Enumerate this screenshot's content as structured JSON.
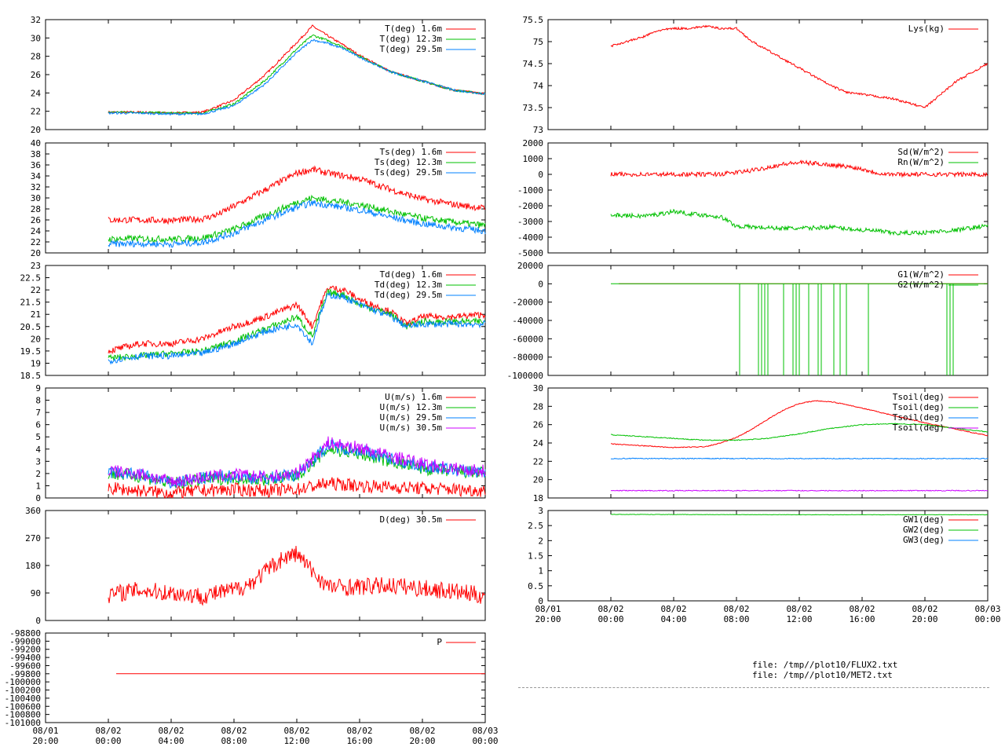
{
  "chart_data": [
    {
      "type": "line",
      "ylim": [
        20,
        32
      ],
      "yticks": [
        "20",
        "22",
        "24",
        "26",
        "28",
        "30",
        "32"
      ],
      "series": [
        {
          "name": "T(deg)  1.6m",
          "color": "#ff0000",
          "x": [
            0,
            2,
            4,
            6,
            8,
            10,
            12,
            13,
            14,
            15,
            16,
            18,
            20,
            22,
            24
          ],
          "values": [
            21.9,
            21.9,
            21.8,
            21.9,
            23.2,
            26.0,
            29.5,
            31.3,
            30.2,
            29.2,
            28.1,
            26.3,
            25.3,
            24.3,
            23.9
          ]
        },
        {
          "name": "T(deg) 12.3m",
          "color": "#00c000",
          "x": [
            0,
            2,
            4,
            6,
            8,
            10,
            12,
            13,
            14,
            15,
            16,
            18,
            20,
            22,
            24
          ],
          "values": [
            21.9,
            21.9,
            21.8,
            21.8,
            22.8,
            25.4,
            28.8,
            30.3,
            29.7,
            29.0,
            28.0,
            26.3,
            25.3,
            24.3,
            23.9
          ]
        },
        {
          "name": "T(deg) 29.5m",
          "color": "#0080ff",
          "x": [
            0,
            2,
            4,
            6,
            8,
            10,
            12,
            13,
            14,
            15,
            16,
            18,
            20,
            22,
            24
          ],
          "values": [
            21.8,
            21.8,
            21.7,
            21.7,
            22.6,
            25.0,
            28.4,
            29.8,
            29.4,
            28.8,
            27.9,
            26.3,
            25.3,
            24.3,
            23.9
          ]
        }
      ]
    },
    {
      "type": "line",
      "ylim": [
        20,
        40
      ],
      "yticks": [
        "20",
        "22",
        "24",
        "26",
        "28",
        "30",
        "32",
        "34",
        "36",
        "38",
        "40"
      ],
      "series": [
        {
          "name": "Ts(deg)  1.6m",
          "color": "#ff0000",
          "x": [
            0,
            2,
            4,
            6,
            7,
            8,
            10,
            12,
            13,
            14,
            16,
            18,
            20,
            22,
            24
          ],
          "values": [
            26.0,
            26.0,
            25.9,
            26.2,
            27.0,
            28.5,
            31.5,
            34.5,
            35.2,
            34.5,
            33.5,
            31.5,
            29.8,
            28.8,
            28.1
          ]
        },
        {
          "name": "Ts(deg) 12.3m",
          "color": "#00c000",
          "x": [
            0,
            2,
            4,
            6,
            8,
            10,
            12,
            13,
            14,
            16,
            18,
            20,
            22,
            24
          ],
          "values": [
            22.5,
            22.6,
            22.5,
            22.7,
            24.3,
            26.8,
            29.2,
            30.0,
            29.6,
            28.8,
            27.5,
            26.3,
            25.6,
            25.0
          ]
        },
        {
          "name": "Ts(deg) 29.5m",
          "color": "#0080ff",
          "x": [
            0,
            2,
            4,
            6,
            8,
            10,
            12,
            13,
            14,
            16,
            18,
            20,
            22,
            24
          ],
          "values": [
            21.6,
            21.7,
            21.6,
            21.9,
            23.6,
            26.0,
            28.3,
            29.1,
            28.7,
            27.8,
            26.5,
            25.3,
            24.6,
            24.0
          ]
        }
      ]
    },
    {
      "type": "line",
      "ylim": [
        18.5,
        23
      ],
      "yticks": [
        "18.5",
        "19",
        "19.5",
        "20",
        "20.5",
        "21",
        "21.5",
        "22",
        "22.5",
        "23"
      ],
      "series": [
        {
          "name": "Td(deg)  1.6m",
          "color": "#ff0000",
          "x": [
            0,
            2,
            4,
            6,
            8,
            10,
            12,
            13,
            13.5,
            14,
            15,
            16,
            18,
            19,
            20,
            22,
            24
          ],
          "values": [
            19.5,
            19.8,
            19.8,
            20.0,
            20.5,
            20.9,
            21.4,
            20.5,
            21.4,
            22.1,
            22.0,
            21.6,
            21.1,
            20.6,
            20.9,
            20.9,
            21.0
          ]
        },
        {
          "name": "Td(deg) 12.3m",
          "color": "#00c000",
          "x": [
            0,
            2,
            4,
            6,
            8,
            10,
            12,
            13,
            13.5,
            14,
            15,
            16,
            18,
            19,
            20,
            22,
            24
          ],
          "values": [
            19.2,
            19.3,
            19.4,
            19.5,
            19.9,
            20.4,
            20.9,
            20.1,
            21.1,
            21.9,
            21.8,
            21.4,
            21.0,
            20.5,
            20.7,
            20.7,
            20.7
          ]
        },
        {
          "name": "Td(deg) 29.5m",
          "color": "#0080ff",
          "x": [
            0,
            2,
            4,
            6,
            8,
            10,
            12,
            13,
            13.5,
            14,
            15,
            16,
            18,
            19,
            20,
            22,
            24
          ],
          "values": [
            19.1,
            19.3,
            19.3,
            19.4,
            19.8,
            20.3,
            20.6,
            19.8,
            21.0,
            21.8,
            21.7,
            21.4,
            20.9,
            20.5,
            20.6,
            20.6,
            20.6
          ]
        }
      ]
    },
    {
      "type": "line",
      "ylim": [
        0,
        9
      ],
      "yticks": [
        "0",
        "1",
        "2",
        "3",
        "4",
        "5",
        "6",
        "7",
        "8",
        "9"
      ],
      "series": [
        {
          "name": "U(m/s)  1.6m",
          "color": "#ff0000",
          "x": [
            0,
            2,
            4,
            6,
            8,
            10,
            12,
            14,
            16,
            18,
            20,
            22,
            24
          ],
          "values": [
            0.8,
            0.6,
            0.4,
            0.6,
            0.7,
            0.6,
            0.7,
            1.2,
            1.0,
            0.9,
            0.8,
            0.7,
            0.6
          ]
        },
        {
          "name": "U(m/s) 12.3m",
          "color": "#00c000",
          "x": [
            0,
            2,
            4,
            6,
            8,
            10,
            12,
            14,
            16,
            18,
            20,
            22,
            24
          ],
          "values": [
            2.0,
            1.8,
            1.2,
            1.5,
            1.7,
            1.5,
            1.8,
            4.0,
            3.6,
            3.0,
            2.4,
            2.2,
            2.0
          ]
        },
        {
          "name": "U(m/s) 29.5m",
          "color": "#0080ff",
          "x": [
            0,
            2,
            4,
            6,
            8,
            10,
            12,
            14,
            16,
            18,
            20,
            22,
            24
          ],
          "values": [
            2.1,
            1.9,
            1.2,
            1.6,
            1.8,
            1.6,
            1.9,
            4.3,
            3.9,
            3.2,
            2.6,
            2.3,
            2.1
          ]
        },
        {
          "name": "U(m/s) 30.5m",
          "color": "#cc00ff",
          "x": [
            0,
            2,
            4,
            6,
            8,
            10,
            12,
            14,
            16,
            18,
            20,
            22,
            24
          ],
          "values": [
            2.2,
            2.0,
            1.3,
            1.7,
            1.9,
            1.7,
            2.0,
            4.5,
            4.1,
            3.4,
            2.8,
            2.4,
            2.2
          ]
        }
      ]
    },
    {
      "type": "line",
      "ylim": [
        0,
        360
      ],
      "yticks": [
        "0",
        "90",
        "180",
        "270",
        "360"
      ],
      "series": [
        {
          "name": "D(deg)  30.5m",
          "color": "#ff0000",
          "x": [
            0,
            2,
            4,
            6,
            8,
            9,
            10,
            11,
            12,
            13,
            14,
            16,
            18,
            20,
            22,
            24
          ],
          "values": [
            85,
            100,
            90,
            80,
            100,
            120,
            160,
            200,
            220,
            160,
            110,
            110,
            115,
            105,
            95,
            80
          ]
        }
      ]
    },
    {
      "type": "line",
      "ylim": [
        -98800,
        -101000
      ],
      "yticks": [
        "-101000",
        "-100800",
        "-100600",
        "-100400",
        "-100200",
        "-100000",
        "-99800",
        "-99600",
        "-99400",
        "-99200",
        "-99000",
        "-98800"
      ],
      "series": [
        {
          "name": "P",
          "color": "#ff0000",
          "x": [
            0.5,
            24
          ],
          "values": [
            -100000,
            -100000
          ]
        }
      ]
    },
    {
      "type": "line",
      "ylim": [
        73,
        75.5
      ],
      "yticks": [
        "73",
        "73.5",
        "74",
        "74.5",
        "75",
        "75.5"
      ],
      "series": [
        {
          "name": "Lys(kg)",
          "color": "#ff0000",
          "x": [
            0,
            1,
            2,
            3,
            4,
            5,
            6,
            7,
            8,
            9,
            10,
            11,
            12,
            13,
            14,
            15,
            16,
            17,
            18,
            19,
            20,
            21,
            22,
            23,
            24
          ],
          "values": [
            74.9,
            75.0,
            75.1,
            75.25,
            75.3,
            75.3,
            75.35,
            75.3,
            75.3,
            75.0,
            74.8,
            74.6,
            74.4,
            74.2,
            74.0,
            73.85,
            73.8,
            73.75,
            73.7,
            73.6,
            73.5,
            73.8,
            74.1,
            74.3,
            74.5
          ]
        }
      ]
    },
    {
      "type": "line",
      "ylim": [
        -5000,
        2000
      ],
      "yticks": [
        "-5000",
        "-4000",
        "-3000",
        "-2000",
        "-1000",
        "0",
        "1000",
        "2000"
      ],
      "series": [
        {
          "name": "Sd(W/m^2)",
          "color": "#ff0000",
          "x": [
            0,
            6,
            7,
            8,
            9,
            10,
            11,
            12,
            13,
            14,
            15,
            16,
            17,
            18,
            24
          ],
          "values": [
            0,
            0,
            20,
            120,
            250,
            450,
            650,
            750,
            700,
            600,
            500,
            350,
            80,
            0,
            0
          ]
        },
        {
          "name": "Rn(W/m^2)",
          "color": "#00c000",
          "x": [
            0,
            2,
            3,
            4,
            5,
            6,
            7,
            8,
            10,
            12,
            14,
            16,
            17,
            18,
            20,
            22,
            24
          ],
          "values": [
            -2600,
            -2650,
            -2550,
            -2350,
            -2500,
            -2600,
            -2700,
            -3300,
            -3400,
            -3450,
            -3350,
            -3550,
            -3600,
            -3750,
            -3700,
            -3550,
            -3250
          ]
        }
      ]
    },
    {
      "type": "line",
      "ylim": [
        -100000,
        20000
      ],
      "yticks": [
        "-100000",
        "-80000",
        "-60000",
        "-40000",
        "-20000",
        "0",
        "20000"
      ],
      "series": [
        {
          "name": "G1(W/m^2)",
          "color": "#ff0000",
          "x": [
            0.5,
            24
          ],
          "values": [
            0,
            0
          ]
        },
        {
          "name": "G2(W/m^2)",
          "color": "#00c000",
          "x": [
            0,
            24
          ],
          "values": [
            0,
            0
          ]
        }
      ],
      "spikes": {
        "color": "#00c000",
        "to": -100000,
        "x": [
          8.2,
          9.4,
          9.6,
          9.8,
          10.0,
          11.0,
          11.6,
          11.8,
          12.0,
          12.6,
          13.2,
          13.4,
          14.2,
          14.6,
          15.0,
          16.4,
          21.4,
          21.6,
          21.8
        ]
      }
    },
    {
      "type": "line",
      "ylim": [
        18,
        30
      ],
      "yticks": [
        "18",
        "20",
        "22",
        "24",
        "26",
        "28",
        "30"
      ],
      "series": [
        {
          "name": "Tsoil(deg)",
          "color": "#ff0000",
          "x": [
            0,
            2,
            4,
            6,
            7,
            8,
            9,
            10,
            11,
            12,
            13,
            14,
            15,
            16,
            18,
            20,
            22,
            24
          ],
          "values": [
            23.9,
            23.7,
            23.5,
            23.6,
            24.0,
            24.6,
            25.5,
            26.6,
            27.6,
            28.3,
            28.6,
            28.5,
            28.2,
            27.8,
            27.0,
            26.2,
            25.5,
            24.8
          ]
        },
        {
          "name": "Tsoil(deg)",
          "color": "#00c000",
          "x": [
            0,
            2,
            4,
            6,
            8,
            10,
            12,
            14,
            16,
            18,
            20,
            22,
            24
          ],
          "values": [
            24.9,
            24.7,
            24.5,
            24.3,
            24.3,
            24.5,
            25.0,
            25.6,
            26.0,
            26.1,
            26.0,
            25.6,
            25.2
          ]
        },
        {
          "name": "Tsoil(deg)",
          "color": "#0080ff",
          "x": [
            0,
            24
          ],
          "values": [
            22.3,
            22.3
          ]
        },
        {
          "name": "Tsoil(deg)",
          "color": "#cc00ff",
          "x": [
            0,
            24
          ],
          "values": [
            18.8,
            18.8
          ]
        }
      ]
    },
    {
      "type": "line",
      "ylim": [
        0,
        3
      ],
      "yticks": [
        "0",
        "0.5",
        "1",
        "1.5",
        "2",
        "2.5",
        "3"
      ],
      "series": [
        {
          "name": "GW1(deg)",
          "color": "#ff0000",
          "x": [],
          "values": []
        },
        {
          "name": "GW2(deg)",
          "color": "#00c000",
          "x": [
            0,
            12,
            24
          ],
          "values": [
            2.87,
            2.86,
            2.86
          ]
        },
        {
          "name": "GW3(deg)",
          "color": "#0080ff",
          "x": [],
          "values": []
        }
      ]
    }
  ],
  "x_ticks": [
    {
      "line1": "08/01",
      "line2": "20:00"
    },
    {
      "line1": "08/02",
      "line2": "00:00"
    },
    {
      "line1": "08/02",
      "line2": "04:00"
    },
    {
      "line1": "08/02",
      "line2": "08:00"
    },
    {
      "line1": "08/02",
      "line2": "12:00"
    },
    {
      "line1": "08/02",
      "line2": "16:00"
    },
    {
      "line1": "08/02",
      "line2": "20:00"
    },
    {
      "line1": "08/03",
      "line2": "00:00"
    }
  ],
  "files": {
    "flux": "file: /tmp//plot10/FLUX2.txt",
    "met": "file: /tmp//plot10/MET2.txt"
  }
}
